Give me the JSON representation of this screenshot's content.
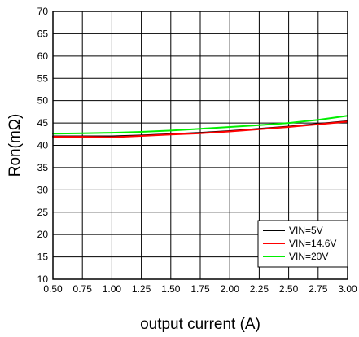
{
  "chart_data": {
    "type": "line",
    "xlabel": "output current (A)",
    "ylabel": "Ron(mΩ)",
    "xlim": [
      0.5,
      3.0
    ],
    "ylim": [
      10,
      70
    ],
    "x_ticks": [
      0.5,
      0.75,
      1.0,
      1.25,
      1.5,
      1.75,
      2.0,
      2.25,
      2.5,
      2.75,
      3.0
    ],
    "x_tick_labels": [
      "0.50",
      "0.75",
      "1.00",
      "1.25",
      "1.50",
      "1.75",
      "2.00",
      "2.25",
      "2.50",
      "2.75",
      "3.00"
    ],
    "y_ticks": [
      10,
      15,
      20,
      25,
      30,
      35,
      40,
      45,
      50,
      55,
      60,
      65,
      70
    ],
    "y_tick_labels": [
      "10",
      "15",
      "20",
      "25",
      "30",
      "35",
      "40",
      "45",
      "50",
      "55",
      "60",
      "65",
      "70"
    ],
    "grid": true,
    "legend_position": "bottom-right",
    "x": [
      0.5,
      0.75,
      1.0,
      1.25,
      1.5,
      1.75,
      2.0,
      2.25,
      2.5,
      2.75,
      3.0
    ],
    "series": [
      {
        "name": "VIN=5V",
        "color": "#000000",
        "values": [
          42.0,
          42.0,
          42.0,
          42.2,
          42.5,
          42.8,
          43.2,
          43.7,
          44.2,
          44.8,
          45.4
        ]
      },
      {
        "name": "VIN=14.6V",
        "color": "#ff0000",
        "values": [
          41.9,
          41.9,
          41.8,
          42.1,
          42.4,
          42.7,
          43.1,
          43.6,
          44.1,
          44.7,
          45.3
        ]
      },
      {
        "name": "VIN=20V",
        "color": "#00ee00",
        "values": [
          42.6,
          42.7,
          42.8,
          43.0,
          43.3,
          43.7,
          44.1,
          44.5,
          45.0,
          45.7,
          46.6
        ]
      }
    ]
  }
}
